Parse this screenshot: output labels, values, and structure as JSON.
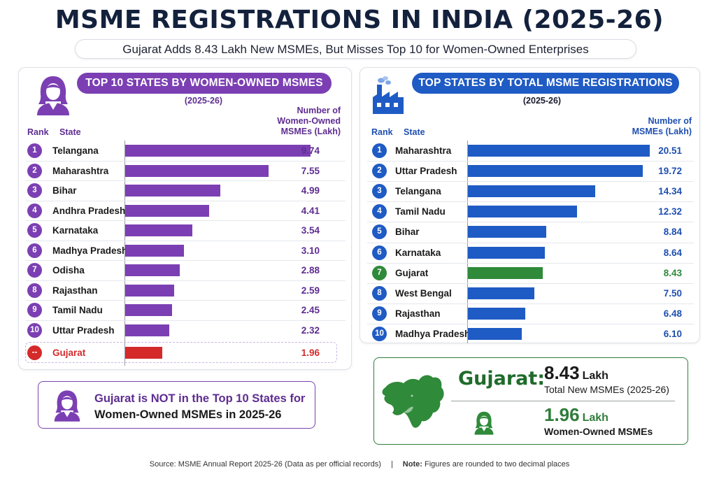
{
  "header": {
    "title": "MSME REGISTRATIONS IN INDIA (2025-26)",
    "subtitle": "Gujarat Adds 8.43 Lakh New MSMEs, But Misses Top 10 for Women-Owned Enterprises"
  },
  "colors": {
    "purple": "#7b3fb3",
    "purple_text": "#5e2d91",
    "blue": "#1f5bc4",
    "blue_text": "#1f4fb0",
    "green": "#2f8a3a",
    "red": "#d42a2a"
  },
  "left_panel": {
    "pill_label": "TOP 10 STATES BY WOMEN-OWNED MSMES",
    "year": "(2025-26)",
    "rank_header": "Rank",
    "state_header": "State",
    "value_header_lines": [
      "Number of",
      "Women-Owned",
      "MSMEs (Lakh)"
    ],
    "icon": "woman-icon",
    "excluded_rank_label": "--"
  },
  "right_panel": {
    "pill_label": "TOP STATES BY TOTAL MSME REGISTRATIONS",
    "year": "(2025-26)",
    "rank_header": "Rank",
    "state_header": "State",
    "value_header_lines": [
      "Number of",
      "MSMEs (Lakh)"
    ],
    "icon": "factory-icon"
  },
  "callout": {
    "line1": "Gujarat is NOT in the Top 10 States for",
    "line2": "Women-Owned MSMEs in 2025-26",
    "icon": "woman-icon"
  },
  "gujarat_card": {
    "name": "Gujarat:",
    "total_value": "8.43",
    "total_unit": "Lakh",
    "total_label": "Total New MSMEs (2025-26)",
    "women_value": "1.96",
    "women_unit": "Lakh",
    "women_label": "Women-Owned MSMEs",
    "map_icon": "gujarat-map-icon",
    "person_icon": "woman-icon"
  },
  "footer": {
    "source": "Source: MSME Annual Report 2025-26 (Data as per official records)",
    "sep": "|",
    "note_label": "Note:",
    "note": "Figures are rounded to two decimal places"
  },
  "chart_data": [
    {
      "type": "bar",
      "title": "TOP 10 STATES BY WOMEN-OWNED MSMES",
      "subtitle": "(2025-26)",
      "orientation": "horizontal",
      "ylabel": "Number of Women-Owned MSMEs (Lakh)",
      "categories": [
        "Telangana",
        "Maharashtra",
        "Bihar",
        "Andhra Pradesh",
        "Karnataka",
        "Madhya Pradesh",
        "Odisha",
        "Rajasthan",
        "Tamil Nadu",
        "Uttar Pradesh",
        "Gujarat"
      ],
      "ranks": [
        "1",
        "2",
        "3",
        "4",
        "5",
        "6",
        "7",
        "8",
        "9",
        "10",
        "--"
      ],
      "values": [
        9.74,
        7.55,
        4.99,
        4.41,
        3.54,
        3.1,
        2.88,
        2.59,
        2.45,
        2.32,
        1.96
      ],
      "value_labels": [
        "9.74",
        "7.55",
        "4.99",
        "4.41",
        "3.54",
        "3.10",
        "2.88",
        "2.59",
        "2.45",
        "2.32",
        "1.96"
      ],
      "highlight": "Gujarat",
      "xlim": [
        0,
        9.74
      ]
    },
    {
      "type": "bar",
      "title": "TOP STATES BY TOTAL MSME REGISTRATIONS",
      "subtitle": "(2025-26)",
      "orientation": "horizontal",
      "ylabel": "Number of MSMEs (Lakh)",
      "categories": [
        "Maharashtra",
        "Uttar Pradesh",
        "Telangana",
        "Tamil Nadu",
        "Bihar",
        "Karnataka",
        "Gujarat",
        "West Bengal",
        "Rajasthan",
        "Madhya Pradesh"
      ],
      "ranks": [
        "1",
        "2",
        "3",
        "4",
        "5",
        "6",
        "7",
        "8",
        "9",
        "10"
      ],
      "values": [
        20.51,
        19.72,
        14.34,
        12.32,
        8.84,
        8.64,
        8.43,
        7.5,
        6.48,
        6.1
      ],
      "value_labels": [
        "20.51",
        "19.72",
        "14.34",
        "12.32",
        "8.84",
        "8.64",
        "8.43",
        "7.50",
        "6.48",
        "6.10"
      ],
      "highlight": "Gujarat",
      "xlim": [
        0,
        20.51
      ]
    }
  ]
}
